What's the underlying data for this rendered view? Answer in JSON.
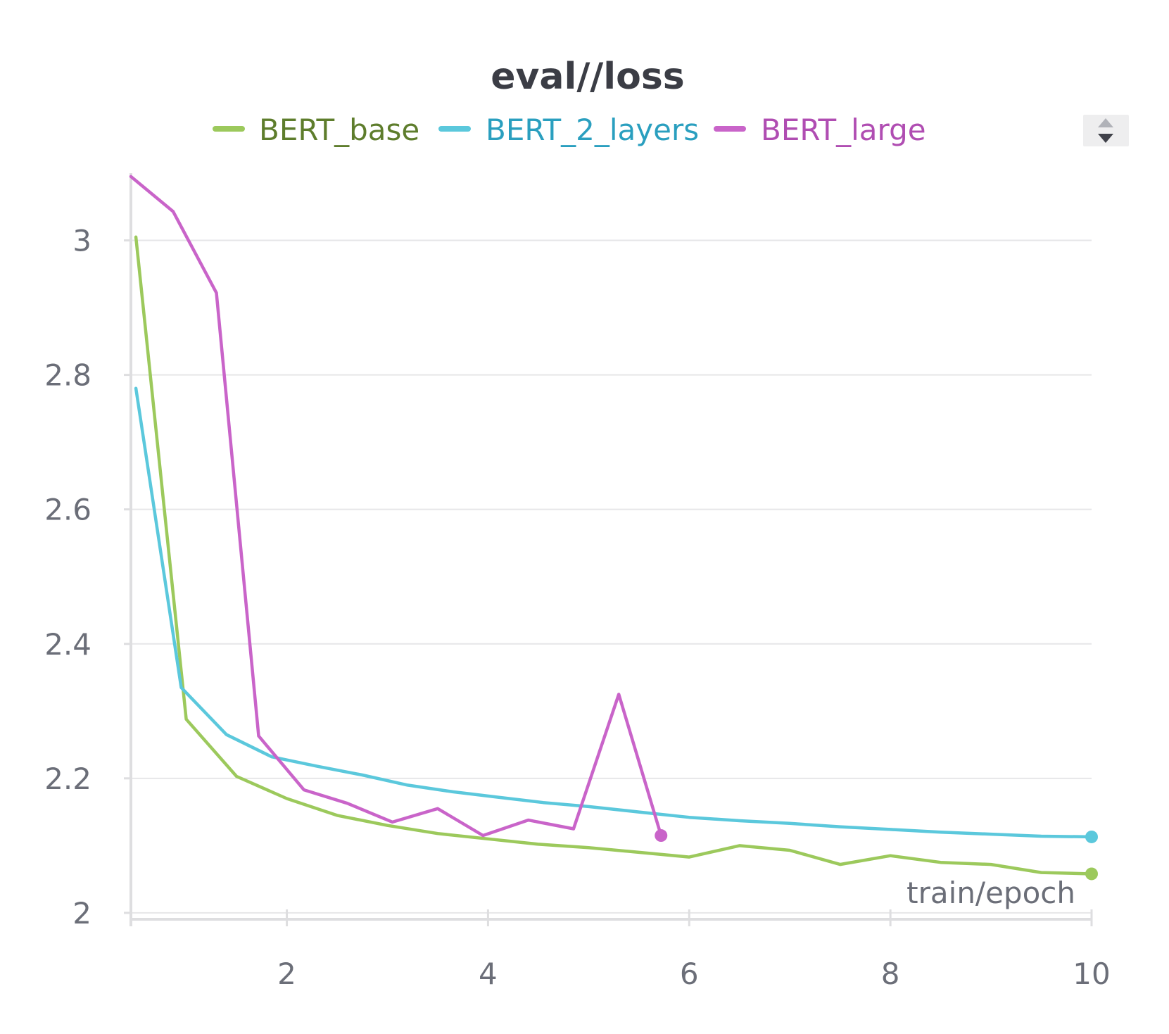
{
  "chart_data": {
    "type": "line",
    "title": "eval//loss",
    "xlabel": "train/epoch",
    "ylabel": "",
    "xlim": [
      0.45,
      10
    ],
    "ylim": [
      1.98,
      3.1
    ],
    "xticks": [
      2,
      4,
      6,
      8,
      10
    ],
    "yticks": [
      2,
      2.2,
      2.4,
      2.6,
      2.8,
      3
    ],
    "xtick_labels": [
      "2",
      "4",
      "6",
      "8",
      "10"
    ],
    "ytick_labels": [
      "2",
      "2.2",
      "2.4",
      "2.6",
      "2.8",
      "3"
    ],
    "grid": true,
    "legend_position": "top",
    "series": [
      {
        "name": "BERT_base",
        "color": "#9cc95c",
        "text_color": "#5e7d2c",
        "x": [
          0.5,
          1.0,
          1.5,
          2.0,
          2.5,
          3.0,
          3.5,
          4.0,
          4.5,
          5.0,
          5.5,
          6.0,
          6.5,
          7.0,
          7.5,
          8.0,
          8.5,
          9.0,
          9.5,
          10.0
        ],
        "y": [
          3.005,
          2.288,
          2.203,
          2.17,
          2.145,
          2.13,
          2.118,
          2.11,
          2.102,
          2.097,
          2.09,
          2.083,
          2.1,
          2.093,
          2.072,
          2.085,
          2.075,
          2.072,
          2.06,
          2.058
        ]
      },
      {
        "name": "BERT_2_layers",
        "color": "#5bc8dc",
        "text_color": "#2a9fbf",
        "x": [
          0.5,
          0.95,
          1.4,
          1.85,
          2.3,
          2.75,
          3.2,
          3.65,
          4.1,
          4.55,
          5.0,
          5.5,
          6.0,
          6.5,
          7.0,
          7.5,
          8.0,
          8.5,
          9.0,
          9.5,
          10.0
        ],
        "y": [
          2.78,
          2.335,
          2.265,
          2.232,
          2.218,
          2.205,
          2.19,
          2.18,
          2.172,
          2.164,
          2.158,
          2.15,
          2.142,
          2.137,
          2.133,
          2.128,
          2.124,
          2.12,
          2.117,
          2.114,
          2.113
        ]
      },
      {
        "name": "BERT_large",
        "color": "#c964c9",
        "text_color": "#b04db2",
        "x": [
          0.45,
          0.87,
          1.3,
          1.72,
          2.17,
          2.6,
          3.05,
          3.5,
          3.95,
          4.4,
          4.85,
          5.3,
          5.72
        ],
        "y": [
          3.095,
          3.043,
          2.922,
          2.263,
          2.183,
          2.163,
          2.135,
          2.155,
          2.115,
          2.138,
          2.125,
          2.325,
          2.115
        ]
      }
    ]
  },
  "ui": {
    "scroll_icon": "up-down-arrows-icon"
  }
}
